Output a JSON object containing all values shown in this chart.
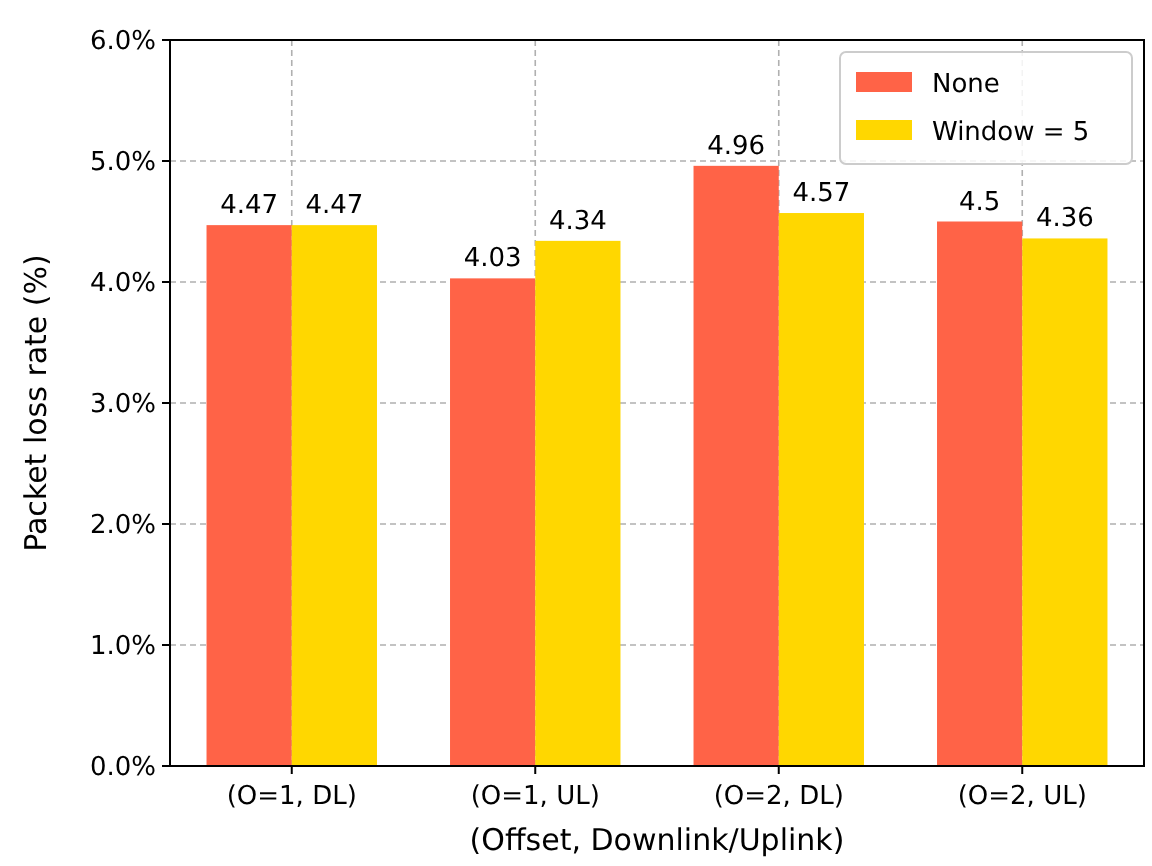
{
  "chart_data": {
    "type": "bar",
    "xlabel": "(Offset, Downlink/Uplink)",
    "ylabel": "Packet loss rate (%)",
    "categories": [
      "(O=1, DL)",
      "(O=1, UL)",
      "(O=2, DL)",
      "(O=2, UL)"
    ],
    "series": [
      {
        "name": "None",
        "color": "#ff6347",
        "values": [
          4.47,
          4.03,
          4.96,
          4.5
        ]
      },
      {
        "name": "Window = 5",
        "color": "#ffd700",
        "values": [
          4.47,
          4.34,
          4.57,
          4.36
        ]
      }
    ],
    "ylim": [
      0,
      6
    ],
    "yticks": [
      {
        "value": 0,
        "label": "0.0%"
      },
      {
        "value": 1,
        "label": "1.0%"
      },
      {
        "value": 2,
        "label": "2.0%"
      },
      {
        "value": 3,
        "label": "3.0%"
      },
      {
        "value": 4,
        "label": "4.0%"
      },
      {
        "value": 5,
        "label": "5.0%"
      },
      {
        "value": 6,
        "label": "6.0%"
      }
    ],
    "data_labels": true,
    "grid": true,
    "legend": "top right"
  }
}
